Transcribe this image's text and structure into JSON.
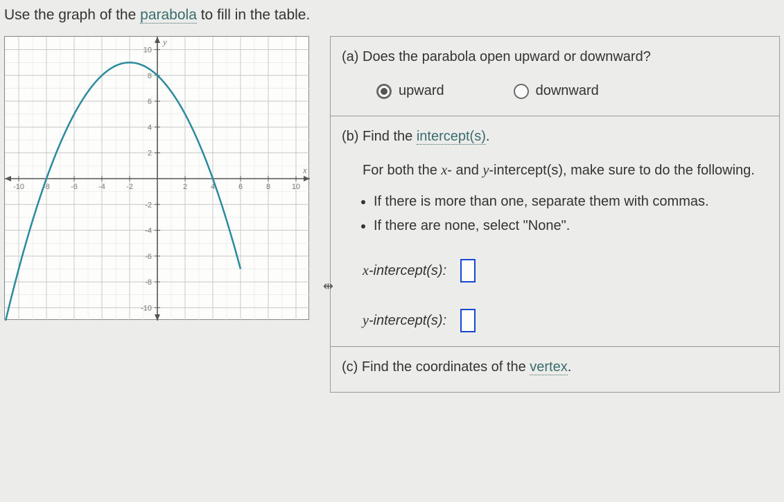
{
  "instruction": {
    "prefix": "Use the graph of the ",
    "link": "parabola",
    "suffix": " to fill in the table."
  },
  "chart": {
    "type": "parabola",
    "background_color": "#fdfdfb",
    "grid_major_color": "#c9c9c7",
    "grid_minor_color": "#e4e4e1",
    "axis_color": "#555555",
    "axis_label_color": "#777777",
    "axis_fontsize": 11,
    "curve_color": "#2a8a9e",
    "curve_width": 2.5,
    "x_axis_label": "x",
    "y_axis_label": "y",
    "xlim": [
      -11,
      11
    ],
    "ylim": [
      -11,
      11
    ],
    "major_tick_step": 2,
    "minor_tick_step": 1,
    "x_ticks": [
      -10,
      -8,
      -6,
      -4,
      -2,
      2,
      4,
      6,
      8,
      10
    ],
    "y_ticks": [
      -10,
      -8,
      -6,
      -4,
      -2,
      2,
      4,
      6,
      8,
      10
    ],
    "parabola": {
      "vertex": [
        -2,
        9
      ],
      "a": -0.25,
      "x_intercepts": [
        -8,
        4
      ],
      "y_intercept": 8,
      "domain_draw": [
        -11,
        6
      ]
    }
  },
  "questions": {
    "a": {
      "prompt": "(a) Does the parabola open upward or downward?",
      "options": {
        "upward": "upward",
        "downward": "downward"
      },
      "selected": "upward"
    },
    "b": {
      "prompt_prefix": "(b) Find the ",
      "prompt_link": "intercept(s)",
      "prompt_suffix": ".",
      "note_prefix": "For both the ",
      "note_var1": "x",
      "note_mid": "- and ",
      "note_var2": "y",
      "note_suffix": "-intercept(s), make sure to do the following.",
      "bullets": [
        "If there is more than one, separate them with commas.",
        "If there are none, select \"None\"."
      ],
      "x_label_var": "x",
      "x_label_suffix": "-intercept(s):",
      "y_label_var": "y",
      "y_label_suffix": "-intercept(s):",
      "x_value": "",
      "y_value": ""
    },
    "c": {
      "prompt_prefix": "(c) Find the coordinates of the ",
      "prompt_link": "vertex",
      "prompt_suffix": "."
    }
  },
  "colors": {
    "page_bg": "#ececea",
    "text": "#333333",
    "link": "#3a6c6e",
    "input_border": "#1647d4",
    "section_border": "#999999"
  }
}
